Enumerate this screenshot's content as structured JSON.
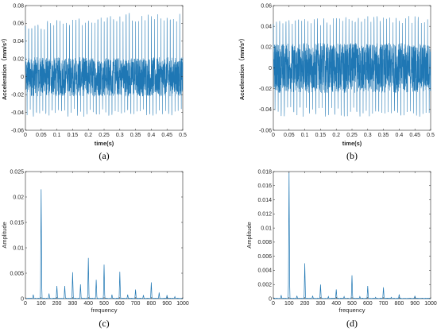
{
  "panel_labels": {
    "a": "(a)",
    "b": "(b)",
    "c": "(c)",
    "d": "(d)"
  },
  "chart_data": [
    {
      "id": "a",
      "type": "line",
      "subtype": "time-signal",
      "xlabel": "time(s)",
      "ylabel": "Acceleration（mm/s²）",
      "xlim": [
        0,
        0.5
      ],
      "ylim": [
        -0.06,
        0.08
      ],
      "xticks": [
        "0",
        "0.05",
        "0.1",
        "0.15",
        "0.2",
        "0.25",
        "0.3",
        "0.35",
        "0.4",
        "0.45",
        "0.5"
      ],
      "yticks": [
        "-0.06",
        "-0.04",
        "-0.02",
        "0",
        "0.02",
        "0.04",
        "0.06",
        "0.08"
      ],
      "grid": false,
      "color": "#1f77b4",
      "signal": {
        "fundamental_hz": 100,
        "peak_upper_start": 0.06,
        "peak_upper_end": 0.072,
        "peak_lower": -0.045,
        "band_upper": 0.022,
        "band_lower": -0.022
      }
    },
    {
      "id": "b",
      "type": "line",
      "subtype": "time-signal",
      "xlabel": "time(s)",
      "ylabel": "Acceleration（mm/s²）",
      "xlim": [
        0,
        0.5
      ],
      "ylim": [
        -0.06,
        0.06
      ],
      "xticks": [
        "0",
        "0.05",
        "0.1",
        "0.15",
        "0.2",
        "0.25",
        "0.3",
        "0.35",
        "0.4",
        "0.45",
        "0.5"
      ],
      "yticks": [
        "-0.06",
        "-0.04",
        "-0.02",
        "0",
        "0.02",
        "0.04",
        "0.06"
      ],
      "grid": false,
      "color": "#1f77b4",
      "signal": {
        "fundamental_hz": 100,
        "peak_upper_start": 0.046,
        "peak_upper_end": 0.05,
        "peak_lower": -0.047,
        "band_upper": 0.024,
        "band_lower": -0.024
      }
    },
    {
      "id": "c",
      "type": "line",
      "subtype": "spectrum",
      "xlabel": "frequency",
      "ylabel": "Amplitude",
      "xlim": [
        0,
        1000
      ],
      "ylim": [
        0,
        0.025
      ],
      "xticks": [
        "0",
        "100",
        "200",
        "300",
        "400",
        "500",
        "600",
        "700",
        "800",
        "900",
        "1000"
      ],
      "yticks": [
        "0",
        "0.005",
        "0.01",
        "0.015",
        "0.02",
        "0.025"
      ],
      "grid": false,
      "color": "#1f77b4",
      "peaks": [
        {
          "x": 50,
          "y": 0.0008
        },
        {
          "x": 100,
          "y": 0.0215
        },
        {
          "x": 150,
          "y": 0.001
        },
        {
          "x": 200,
          "y": 0.0025
        },
        {
          "x": 250,
          "y": 0.0025
        },
        {
          "x": 300,
          "y": 0.0052
        },
        {
          "x": 350,
          "y": 0.0028
        },
        {
          "x": 400,
          "y": 0.008
        },
        {
          "x": 450,
          "y": 0.0037
        },
        {
          "x": 500,
          "y": 0.0067
        },
        {
          "x": 550,
          "y": 0.0008
        },
        {
          "x": 600,
          "y": 0.0053
        },
        {
          "x": 650,
          "y": 0.0008
        },
        {
          "x": 700,
          "y": 0.0018
        },
        {
          "x": 750,
          "y": 0.0007
        },
        {
          "x": 800,
          "y": 0.0032
        },
        {
          "x": 850,
          "y": 0.0012
        },
        {
          "x": 900,
          "y": 0.0007
        },
        {
          "x": 950,
          "y": 0.0004
        }
      ]
    },
    {
      "id": "d",
      "type": "line",
      "subtype": "spectrum",
      "xlabel": "frequency",
      "ylabel": "Amplitude",
      "xlim": [
        0,
        1000
      ],
      "ylim": [
        0,
        0.018
      ],
      "xticks": [
        "0",
        "100",
        "200",
        "300",
        "400",
        "500",
        "600",
        "700",
        "800",
        "900",
        "1000"
      ],
      "yticks": [
        "0",
        "0.002",
        "0.004",
        "0.006",
        "0.008",
        "0.01",
        "0.012",
        "0.014",
        "0.016",
        "0.018"
      ],
      "grid": false,
      "color": "#1f77b4",
      "peaks": [
        {
          "x": 50,
          "y": 0.0005
        },
        {
          "x": 100,
          "y": 0.018
        },
        {
          "x": 150,
          "y": 0.0004
        },
        {
          "x": 200,
          "y": 0.005
        },
        {
          "x": 250,
          "y": 0.0004
        },
        {
          "x": 300,
          "y": 0.002
        },
        {
          "x": 350,
          "y": 0.0003
        },
        {
          "x": 400,
          "y": 0.0013
        },
        {
          "x": 450,
          "y": 0.0003
        },
        {
          "x": 500,
          "y": 0.0033
        },
        {
          "x": 550,
          "y": 0.0003
        },
        {
          "x": 600,
          "y": 0.0018
        },
        {
          "x": 650,
          "y": 0.0002
        },
        {
          "x": 700,
          "y": 0.0016
        },
        {
          "x": 750,
          "y": 0.0002
        },
        {
          "x": 800,
          "y": 0.0006
        },
        {
          "x": 900,
          "y": 0.0004
        }
      ]
    }
  ]
}
